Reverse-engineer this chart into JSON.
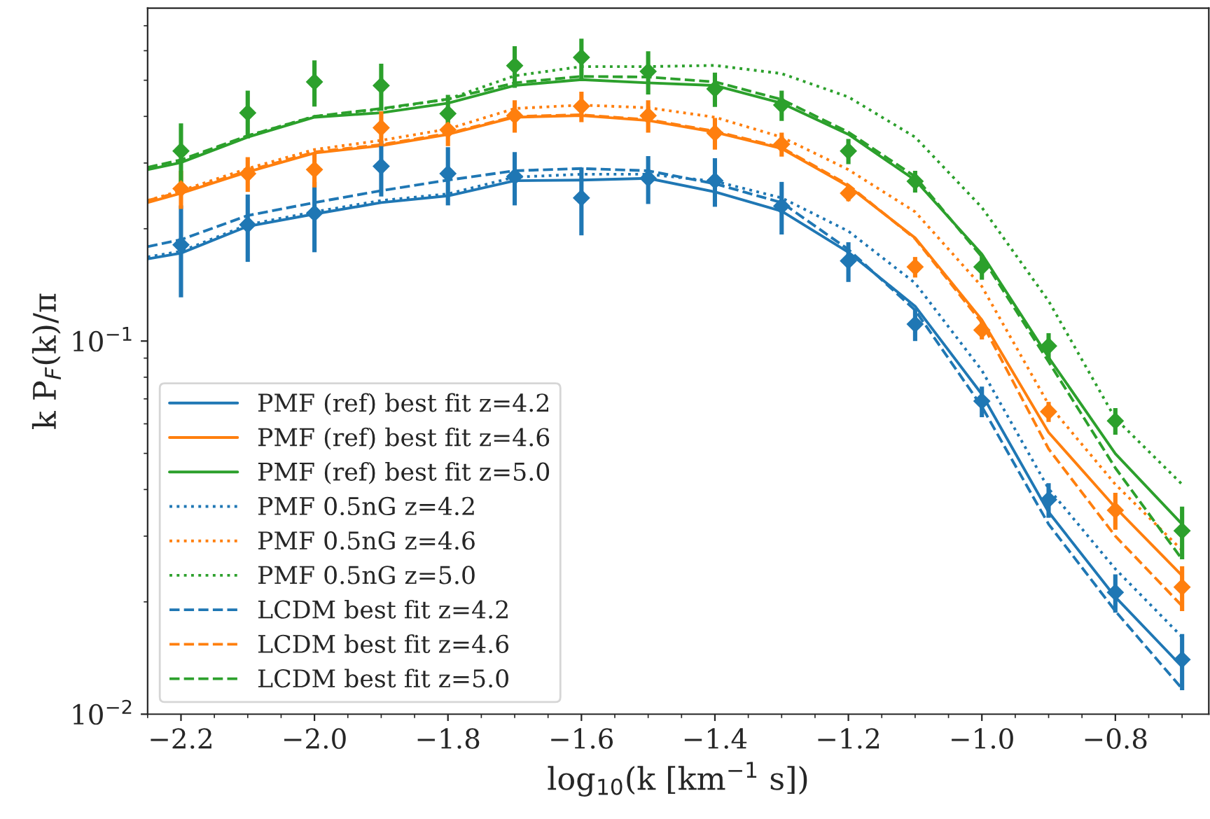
{
  "chart_data": {
    "type": "line",
    "xlabel": "log$_{10}$(k [km$^{−1}$ s])",
    "ylabel": "k P$_{F}$(k)/π",
    "log": "y",
    "grid": false,
    "legend": "bottom left",
    "xlim": [
      -2.25,
      -0.66
    ],
    "ylim": [
      0.01,
      0.78
    ],
    "xticks": [
      {
        "value": -2.2,
        "label": "−2.2"
      },
      {
        "value": -2.0,
        "label": "−2.0"
      },
      {
        "value": -1.8,
        "label": "−1.8"
      },
      {
        "value": -1.6,
        "label": "−1.6"
      },
      {
        "value": -1.4,
        "label": "−1.4"
      },
      {
        "value": -1.2,
        "label": "−1.2"
      },
      {
        "value": -1.0,
        "label": "−1.0"
      },
      {
        "value": -0.8,
        "label": "−0.8"
      }
    ],
    "yticks": [
      {
        "value": 0.01,
        "label": "10$^{−2}$"
      },
      {
        "value": 0.1,
        "label": "10$^{−1}$"
      }
    ],
    "x": [
      -2.2,
      -2.1,
      -2.0,
      -1.9,
      -1.8,
      -1.7,
      -1.6,
      -1.5,
      -1.4,
      -1.3,
      -1.2,
      -1.1,
      -1.0,
      -0.9,
      -0.8,
      -0.7
    ],
    "series": [
      {
        "name": "PMF (ref) best fit z=4.2",
        "line_style": "solid",
        "color": "#1f77b4",
        "x": [
          -2.25,
          -2.2,
          -2.1,
          -2.0,
          -1.9,
          -1.8,
          -1.7,
          -1.6,
          -1.5,
          -1.4,
          -1.3,
          -1.2,
          -1.1,
          -1.0,
          -0.9,
          -0.8,
          -0.7
        ],
        "values": [
          0.166,
          0.172,
          0.203,
          0.219,
          0.235,
          0.245,
          0.269,
          0.27,
          0.273,
          0.251,
          0.223,
          0.173,
          0.124,
          0.072,
          0.0348,
          0.0206,
          0.0134
        ]
      },
      {
        "name": "PMF (ref) best fit z=4.6",
        "line_style": "solid",
        "color": "#ff7f0e",
        "x": [
          -2.25,
          -2.2,
          -2.1,
          -2.0,
          -1.9,
          -1.8,
          -1.7,
          -1.6,
          -1.5,
          -1.4,
          -1.3,
          -1.2,
          -1.1,
          -1.0,
          -0.9,
          -0.8,
          -0.7
        ],
        "values": [
          0.235,
          0.249,
          0.284,
          0.319,
          0.334,
          0.358,
          0.398,
          0.402,
          0.39,
          0.363,
          0.328,
          0.26,
          0.189,
          0.114,
          0.0569,
          0.0358,
          0.0235
        ]
      },
      {
        "name": "PMF (ref) best fit z=5.0",
        "line_style": "solid",
        "color": "#2ca02c",
        "x": [
          -2.25,
          -2.2,
          -2.1,
          -2.0,
          -1.9,
          -1.8,
          -1.7,
          -1.6,
          -1.5,
          -1.4,
          -1.3,
          -1.2,
          -1.1,
          -1.0,
          -0.9,
          -0.8,
          -0.7
        ],
        "values": [
          0.288,
          0.301,
          0.352,
          0.398,
          0.409,
          0.434,
          0.484,
          0.502,
          0.492,
          0.484,
          0.434,
          0.358,
          0.27,
          0.171,
          0.0904,
          0.0499,
          0.0323
        ]
      },
      {
        "name": "PMF 0.5nG z=4.2",
        "line_style": "dotted",
        "color": "#1f77b4",
        "x": [
          -2.25,
          -2.2,
          -2.1,
          -2.0,
          -1.9,
          -1.8,
          -1.7,
          -1.6,
          -1.5,
          -1.4,
          -1.3,
          -1.2,
          -1.1,
          -1.0,
          -0.9,
          -0.8,
          -0.7
        ],
        "values": [
          0.168,
          0.174,
          0.205,
          0.222,
          0.238,
          0.248,
          0.275,
          0.28,
          0.28,
          0.268,
          0.242,
          0.197,
          0.143,
          0.0834,
          0.0402,
          0.0245,
          0.0161
        ]
      },
      {
        "name": "PMF 0.5nG z=4.6",
        "line_style": "dotted",
        "color": "#ff7f0e",
        "x": [
          -2.25,
          -2.2,
          -2.1,
          -2.0,
          -1.9,
          -1.8,
          -1.7,
          -1.6,
          -1.5,
          -1.4,
          -1.3,
          -1.2,
          -1.1,
          -1.0,
          -0.9,
          -0.8,
          -0.7
        ],
        "values": [
          0.238,
          0.253,
          0.29,
          0.326,
          0.345,
          0.37,
          0.42,
          0.429,
          0.422,
          0.398,
          0.352,
          0.288,
          0.222,
          0.14,
          0.0676,
          0.0413,
          0.0275
        ]
      },
      {
        "name": "PMF 0.5nG z=5.0",
        "line_style": "dotted",
        "color": "#2ca02c",
        "x": [
          -2.25,
          -2.2,
          -2.1,
          -2.0,
          -1.9,
          -1.8,
          -1.7,
          -1.6,
          -1.5,
          -1.4,
          -1.3,
          -1.2,
          -1.1,
          -1.0,
          -0.9,
          -0.8,
          -0.7
        ],
        "values": [
          0.29,
          0.303,
          0.355,
          0.4,
          0.418,
          0.445,
          0.514,
          0.544,
          0.544,
          0.548,
          0.521,
          0.451,
          0.352,
          0.228,
          0.128,
          0.062,
          0.0413
        ]
      },
      {
        "name": "LCDM best fit z=4.2",
        "line_style": "dashed",
        "color": "#1f77b4",
        "x": [
          -2.25,
          -2.2,
          -2.1,
          -2.0,
          -1.9,
          -1.8,
          -1.7,
          -1.6,
          -1.5,
          -1.4,
          -1.3,
          -1.2,
          -1.1,
          -1.0,
          -0.9,
          -0.8,
          -0.7
        ],
        "values": [
          0.179,
          0.187,
          0.217,
          0.235,
          0.253,
          0.27,
          0.286,
          0.29,
          0.286,
          0.264,
          0.235,
          0.176,
          0.121,
          0.0667,
          0.0323,
          0.0189,
          0.0117
        ]
      },
      {
        "name": "LCDM best fit z=4.6",
        "line_style": "dashed",
        "color": "#ff7f0e",
        "x": [
          -2.25,
          -2.2,
          -2.1,
          -2.0,
          -1.9,
          -1.8,
          -1.7,
          -1.6,
          -1.5,
          -1.4,
          -1.3,
          -1.2,
          -1.1,
          -1.0,
          -0.9,
          -0.8,
          -0.7
        ],
        "values": [
          0.238,
          0.251,
          0.286,
          0.321,
          0.336,
          0.36,
          0.4,
          0.404,
          0.392,
          0.365,
          0.33,
          0.262,
          0.188,
          0.112,
          0.0514,
          0.03,
          0.0195
        ]
      },
      {
        "name": "LCDM best fit z=5.0",
        "line_style": "dashed",
        "color": "#2ca02c",
        "x": [
          -2.25,
          -2.2,
          -2.1,
          -2.0,
          -1.9,
          -1.8,
          -1.7,
          -1.6,
          -1.5,
          -1.4,
          -1.3,
          -1.2,
          -1.1,
          -1.0,
          -0.9,
          -0.8,
          -0.7
        ],
        "values": [
          0.292,
          0.306,
          0.355,
          0.4,
          0.42,
          0.445,
          0.492,
          0.512,
          0.51,
          0.495,
          0.444,
          0.363,
          0.276,
          0.168,
          0.088,
          0.0457,
          0.026
        ]
      },
      {
        "type": "scatter",
        "marker": "diamond",
        "color": "#1f77b4",
        "values": [
          0.181,
          0.205,
          0.22,
          0.294,
          0.281,
          0.276,
          0.242,
          0.273,
          0.269,
          0.23,
          0.164,
          0.111,
          0.069,
          0.0376,
          0.0212,
          0.014
        ],
        "errors": [
          0.05,
          0.042,
          0.047,
          0.05,
          0.05,
          0.045,
          0.05,
          0.04,
          0.04,
          0.037,
          0.02,
          0.011,
          0.0065,
          0.004,
          0.0025,
          0.0024
        ]
      },
      {
        "type": "scatter",
        "marker": "diamond",
        "color": "#ff7f0e",
        "values": [
          0.256,
          0.281,
          0.288,
          0.373,
          0.368,
          0.402,
          0.426,
          0.402,
          0.361,
          0.337,
          0.249,
          0.158,
          0.107,
          0.0647,
          0.0352,
          0.0219
        ],
        "errors": [
          0.03,
          0.03,
          0.03,
          0.04,
          0.035,
          0.04,
          0.04,
          0.04,
          0.035,
          0.025,
          0.012,
          0.01,
          0.006,
          0.004,
          0.004,
          0.003
        ]
      },
      {
        "type": "scatter",
        "marker": "diamond",
        "color": "#2ca02c",
        "values": [
          0.323,
          0.409,
          0.495,
          0.484,
          0.407,
          0.547,
          0.576,
          0.528,
          0.474,
          0.429,
          0.323,
          0.268,
          0.158,
          0.097,
          0.0611,
          0.031
        ],
        "errors": [
          0.06,
          0.06,
          0.07,
          0.07,
          0.05,
          0.07,
          0.07,
          0.07,
          0.05,
          0.04,
          0.025,
          0.018,
          0.012,
          0.008,
          0.005,
          0.005
        ]
      }
    ]
  }
}
